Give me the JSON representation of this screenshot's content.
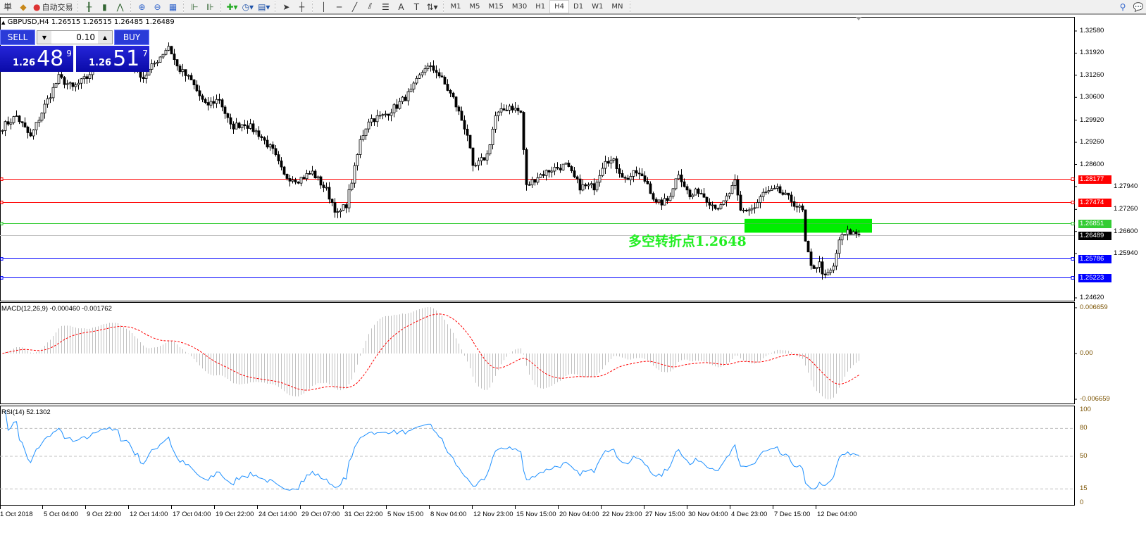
{
  "toolbar": {
    "first_label": "単",
    "auto_trade": "自动交易",
    "timeframes": [
      "M1",
      "M5",
      "M15",
      "M30",
      "H1",
      "H4",
      "D1",
      "W1",
      "MN"
    ],
    "active_timeframe": "H4",
    "icons": [
      "book-icon",
      "auto-trading-icon",
      "bar-chart-icon",
      "candlestick-icon",
      "line-chart-icon",
      "zoom-in-icon",
      "zoom-out-icon",
      "tile-windows-icon",
      "chart-shift-icon",
      "autoscroll-icon",
      "new-indicator-icon",
      "periods-icon",
      "templates-icon",
      "cursor-icon",
      "crosshair-icon",
      "vertical-line-icon",
      "horizontal-line-icon",
      "trendline-icon",
      "fibonacci-icon",
      "channel-icon",
      "text-icon",
      "text-label-icon",
      "arrows-icon",
      "search-icon",
      "chat-icon"
    ]
  },
  "chart": {
    "title": "GBPUSD,H4  1.26515 1.26515 1.26485 1.26489",
    "trade_panel": {
      "sell": "SELL",
      "buy": "BUY",
      "lot": "0.10",
      "sell_small": "1.26",
      "sell_big": "48",
      "sell_pip": "9",
      "buy_small": "1.26",
      "buy_big": "51",
      "buy_pip": "7"
    },
    "annotation": "多空转折点1.2648",
    "zone_color": "#00ee00"
  },
  "chart_data": {
    "type": "candlestick",
    "symbol": "GBPUSD",
    "timeframe": "H4",
    "ylim": [
      1.2462,
      1.3258
    ],
    "price_ticks": [
      "1.32580",
      "1.31920",
      "1.31260",
      "1.30600",
      "1.29920",
      "1.29260",
      "1.28600",
      "1.27940",
      "1.27260",
      "1.26600",
      "1.25940",
      "1.24620"
    ],
    "price_path": [
      [
        0,
        1.2972
      ],
      [
        5,
        1.3004
      ],
      [
        10,
        1.2941
      ],
      [
        15,
        1.3035
      ],
      [
        20,
        1.3119
      ],
      [
        25,
        1.3088
      ],
      [
        30,
        1.3119
      ],
      [
        35,
        1.3182
      ],
      [
        40,
        1.3193
      ],
      [
        45,
        1.3172
      ],
      [
        50,
        1.3119
      ],
      [
        55,
        1.3172
      ],
      [
        59,
        1.3214
      ],
      [
        62,
        1.3151
      ],
      [
        67,
        1.3109
      ],
      [
        72,
        1.3035
      ],
      [
        77,
        1.3056
      ],
      [
        81,
        1.2972
      ],
      [
        86,
        1.2983
      ],
      [
        91,
        1.2951
      ],
      [
        96,
        1.2899
      ],
      [
        100,
        1.2825
      ],
      [
        105,
        1.2815
      ],
      [
        110,
        1.2836
      ],
      [
        115,
        1.2783
      ],
      [
        119,
        1.271
      ],
      [
        122,
        1.2741
      ],
      [
        125,
        1.2846
      ],
      [
        127,
        1.293
      ],
      [
        130,
        1.2993
      ],
      [
        135,
        1.3004
      ],
      [
        140,
        1.3035
      ],
      [
        145,
        1.3077
      ],
      [
        150,
        1.3151
      ],
      [
        154,
        1.314
      ],
      [
        157,
        1.3098
      ],
      [
        160,
        1.3056
      ],
      [
        165,
        1.2951
      ],
      [
        167,
        1.2846
      ],
      [
        172,
        1.2888
      ],
      [
        175,
        1.3004
      ],
      [
        180,
        1.3035
      ],
      [
        184,
        1.3014
      ],
      [
        186,
        1.2794
      ],
      [
        190,
        1.2825
      ],
      [
        195,
        1.2846
      ],
      [
        200,
        1.2857
      ],
      [
        205,
        1.2794
      ],
      [
        210,
        1.2794
      ],
      [
        214,
        1.2878
      ],
      [
        217,
        1.2867
      ],
      [
        221,
        1.2815
      ],
      [
        225,
        1.2836
      ],
      [
        229,
        1.2804
      ],
      [
        232,
        1.2741
      ],
      [
        236,
        1.2752
      ],
      [
        240,
        1.2836
      ],
      [
        244,
        1.2762
      ],
      [
        247,
        1.2783
      ],
      [
        252,
        1.2741
      ],
      [
        255,
        1.2731
      ],
      [
        260,
        1.2804
      ],
      [
        262,
        1.272
      ],
      [
        267,
        1.2731
      ],
      [
        270,
        1.2773
      ],
      [
        275,
        1.2783
      ],
      [
        280,
        1.2752
      ],
      [
        284,
        1.272
      ],
      [
        285,
        1.2626
      ],
      [
        287,
        1.2552
      ],
      [
        290,
        1.2563
      ],
      [
        292,
        1.2521
      ],
      [
        295,
        1.2552
      ],
      [
        297,
        1.2636
      ],
      [
        300,
        1.2657
      ],
      [
        304,
        1.2653
      ]
    ],
    "levels": [
      {
        "price": "1.28177",
        "color": "#ff0000"
      },
      {
        "price": "1.27474",
        "color": "#ff0000"
      },
      {
        "price": "1.26851",
        "color": "#33cc33"
      },
      {
        "price": "1.26489",
        "color": "#000000",
        "line": "#c0c0c0"
      },
      {
        "price": "1.25786",
        "color": "#0000ff"
      },
      {
        "price": "1.25223",
        "color": "#0000ff"
      }
    ],
    "zone": [
      1.2648,
      1.2685
    ],
    "macd": {
      "label": "MACD(12,26,9) -0.000460 -0.001762",
      "ticks": [
        "0.006659",
        "0.00",
        "-0.006659"
      ],
      "range": [
        -0.006659,
        0.006659
      ],
      "signal_color": "#ff0000",
      "hist_color": "#c0c0c0"
    },
    "rsi": {
      "label": "RSI(14) 52.1302",
      "ticks": [
        "100",
        "80",
        "50",
        "15",
        "0"
      ],
      "levels": [
        80,
        50,
        15
      ],
      "color": "#1e90ff"
    },
    "date_ticks": [
      "1 Oct 2018",
      "5 Oct 04:00",
      "9 Oct 22:00",
      "12 Oct 14:00",
      "17 Oct 04:00",
      "19 Oct 22:00",
      "24 Oct 14:00",
      "29 Oct 07:00",
      "31 Oct 22:00",
      "5 Nov 15:00",
      "8 Nov 04:00",
      "12 Nov 23:00",
      "15 Nov 15:00",
      "20 Nov 04:00",
      "22 Nov 23:00",
      "27 Nov 15:00",
      "30 Nov 04:00",
      "4 Dec 23:00",
      "7 Dec 15:00",
      "12 Dec 04:00"
    ]
  }
}
